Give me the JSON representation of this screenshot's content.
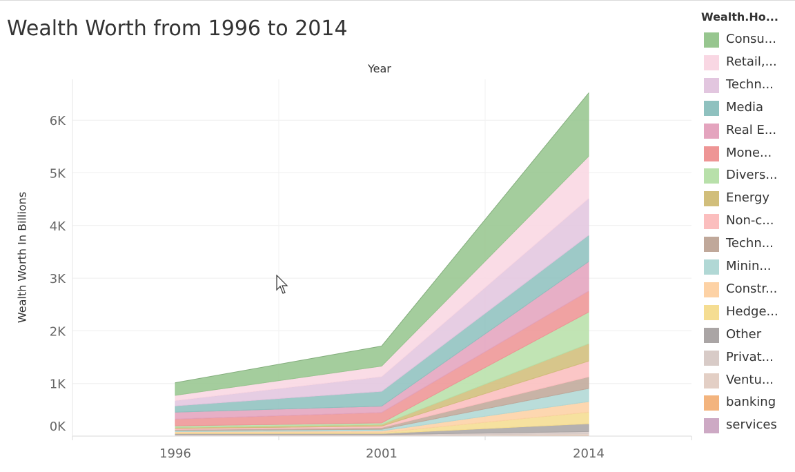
{
  "chart_data": {
    "type": "area",
    "stacked": true,
    "title": "Wealth Worth from 1996 to 2014",
    "column_header": "Year",
    "ylabel": "Wealth Worth In Billions",
    "categories": [
      "1996",
      "2001",
      "2014"
    ],
    "y_ticks": [
      "0K",
      "1K",
      "2K",
      "3K",
      "4K",
      "5K",
      "6K"
    ],
    "ylim": [
      0,
      6600
    ],
    "legend_title": "Wealth.Ho...",
    "legend_position": "right",
    "series": [
      {
        "name": "services",
        "color": "#cda9c4",
        "values": [
          5,
          5,
          8
        ]
      },
      {
        "name": "banking",
        "color": "#f3b47e",
        "values": [
          5,
          5,
          8
        ]
      },
      {
        "name": "Ventu...",
        "color": "#e3cfc5",
        "values": [
          10,
          10,
          30
        ]
      },
      {
        "name": "Privat...",
        "color": "#d8cbc7",
        "values": [
          10,
          10,
          40
        ]
      },
      {
        "name": "Other",
        "color": "#aaa5a5",
        "values": [
          20,
          20,
          150
        ]
      },
      {
        "name": "Hedge...",
        "color": "#f5dd92",
        "values": [
          15,
          20,
          220
        ]
      },
      {
        "name": "Constr...",
        "color": "#fdd2a5",
        "values": [
          20,
          30,
          200
        ]
      },
      {
        "name": "Minin...",
        "color": "#b1d8d5",
        "values": [
          20,
          30,
          250
        ]
      },
      {
        "name": "Techn...",
        "color": "#c0a89a",
        "values": [
          20,
          30,
          220
        ]
      },
      {
        "name": "Non-c...",
        "color": "#fbbebe",
        "values": [
          20,
          30,
          300
        ]
      },
      {
        "name": "Energy",
        "color": "#d1be7b",
        "values": [
          20,
          30,
          330
        ]
      },
      {
        "name": "Divers...",
        "color": "#b8e0aa",
        "values": [
          30,
          30,
          600
        ]
      },
      {
        "name": "Mone...",
        "color": "#ee9595",
        "values": [
          130,
          200,
          400
        ]
      },
      {
        "name": "Real E...",
        "color": "#e4a4be",
        "values": [
          130,
          120,
          560
        ]
      },
      {
        "name": "Media",
        "color": "#8fc1bf",
        "values": [
          120,
          280,
          500
        ]
      },
      {
        "name": "Techn...",
        "color": "#e2c6df",
        "values": [
          100,
          280,
          700
        ]
      },
      {
        "name": "Retail,...",
        "color": "#f9d7e3",
        "values": [
          100,
          200,
          800
        ]
      },
      {
        "name": "Consu...",
        "color": "#97c68f",
        "values": [
          240,
          380,
          1200
        ]
      }
    ]
  }
}
